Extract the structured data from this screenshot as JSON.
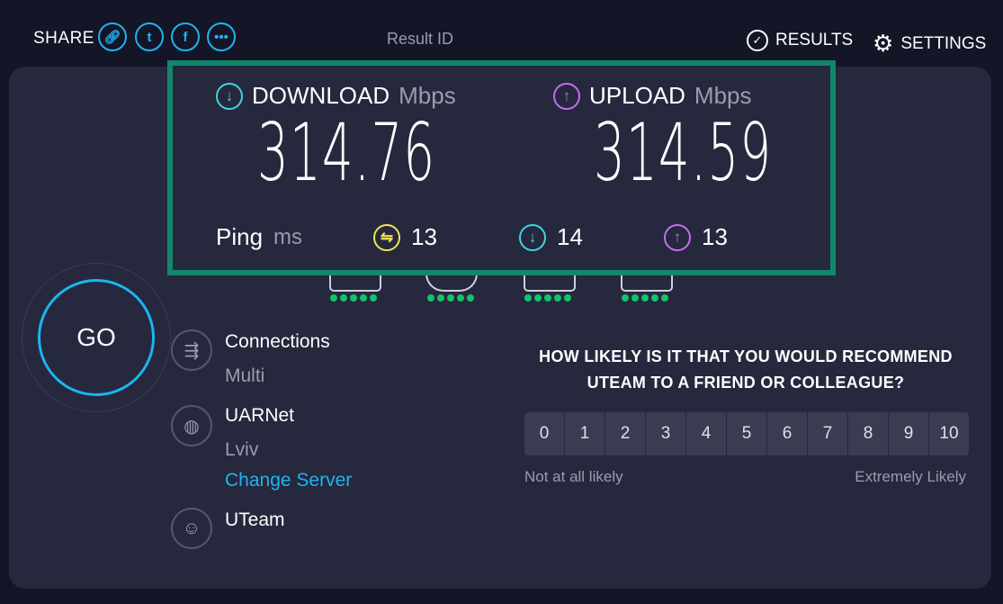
{
  "header": {
    "share_label": "SHARE",
    "share_icons": [
      "link-icon",
      "twitter-icon",
      "facebook-icon",
      "more-icon"
    ],
    "result_id_label": "Result ID",
    "results_label": "RESULTS",
    "settings_label": "SETTINGS"
  },
  "results": {
    "download": {
      "label": "DOWNLOAD",
      "unit": "Mbps",
      "value": "314.76",
      "color": "#3fd6e0"
    },
    "upload": {
      "label": "UPLOAD",
      "unit": "Mbps",
      "value": "314.59",
      "color": "#c56df0"
    },
    "ping": {
      "label": "Ping",
      "unit": "ms",
      "idle": "13",
      "download": "14",
      "upload": "13",
      "idle_color": "#f2e35a"
    },
    "border_color": "#12876a"
  },
  "go_label": "GO",
  "info": {
    "connections": {
      "title": "Connections",
      "value": "Multi"
    },
    "server": {
      "title": "UARNet",
      "location": "Lviv",
      "change_label": "Change Server"
    },
    "provider": {
      "title": "UTeam"
    }
  },
  "survey": {
    "question": "HOW LIKELY IS IT THAT YOU WOULD RECOMMEND UTEAM TO A FRIEND OR COLLEAGUE?",
    "options": [
      "0",
      "1",
      "2",
      "3",
      "4",
      "5",
      "6",
      "7",
      "8",
      "9",
      "10"
    ],
    "low_label": "Not at all likely",
    "high_label": "Extremely Likely"
  },
  "devices": {
    "status_dots_per_device": 5,
    "status_color": "#10c46c"
  }
}
